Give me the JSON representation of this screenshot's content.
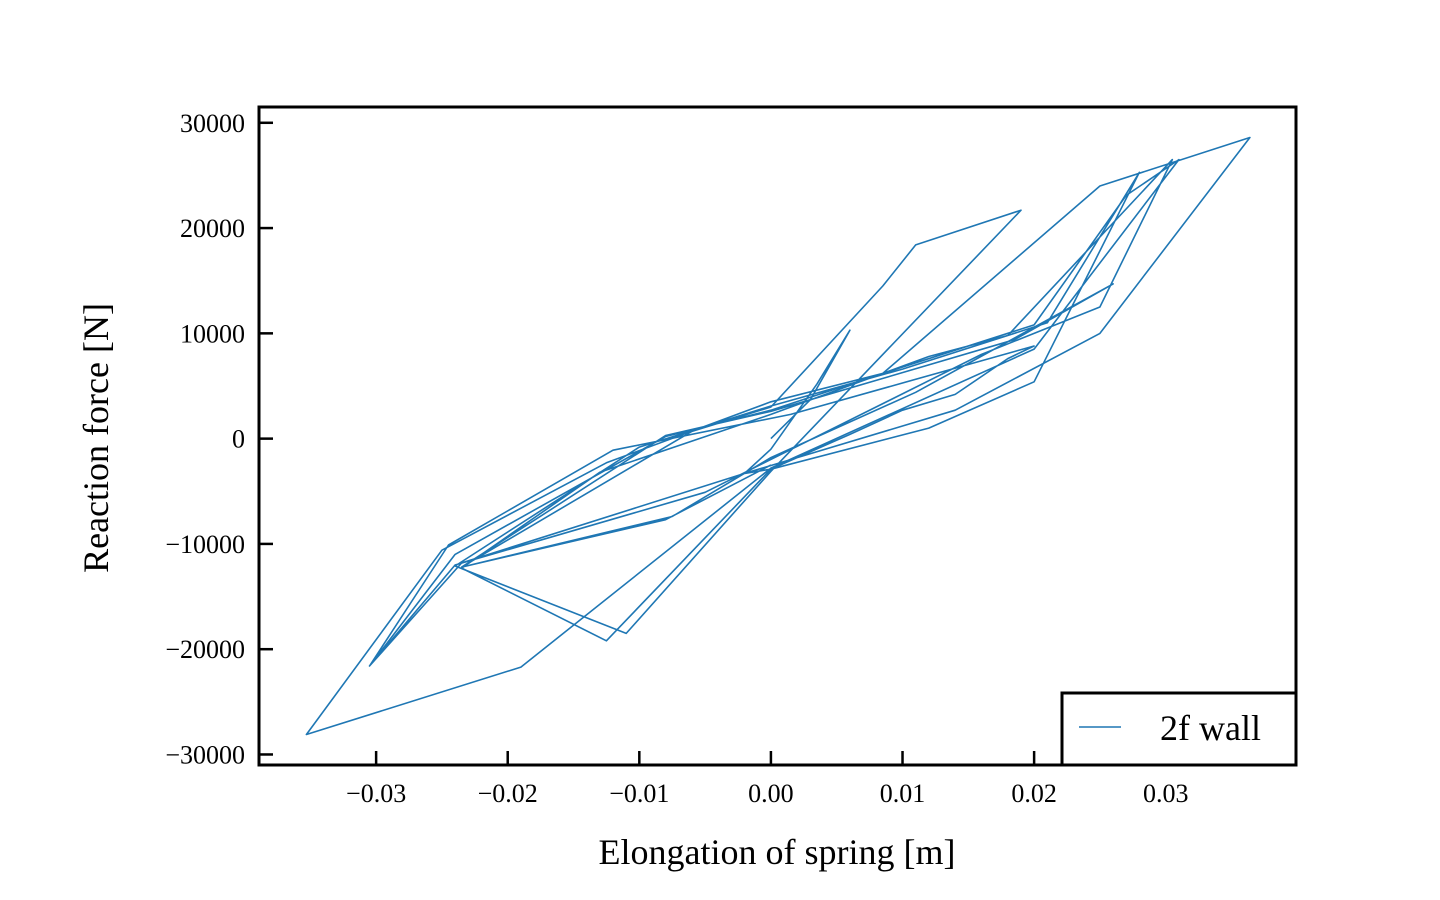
{
  "chart_data": {
    "type": "line",
    "title": "",
    "xlabel": "Elongation of spring [m]",
    "ylabel": "Reaction force [N]",
    "xlim": [
      -0.0389,
      0.0399
    ],
    "ylim": [
      -31000,
      31500
    ],
    "xticks": [
      -0.03,
      -0.02,
      -0.01,
      0.0,
      0.01,
      0.02,
      0.03
    ],
    "xtick_labels": [
      "−0.03",
      "−0.02",
      "−0.01",
      "0.00",
      "0.01",
      "0.02",
      "0.03"
    ],
    "yticks": [
      -30000,
      -20000,
      -10000,
      0,
      10000,
      20000,
      30000
    ],
    "ytick_labels": [
      "−30000",
      "−20000",
      "−10000",
      "0",
      "10000",
      "20000",
      "30000"
    ],
    "tick_direction": "in",
    "grid": false,
    "legend": {
      "position": "lower-right"
    },
    "series": [
      {
        "name": "2f wall",
        "color": "#1f77b4",
        "points": [
          [
            0.0,
            0
          ],
          [
            0.003,
            3700
          ],
          [
            0.006,
            10300
          ],
          [
            0.0035,
            5200
          ],
          [
            0.0,
            -1000
          ],
          [
            -0.002,
            -3300
          ],
          [
            0.0,
            -2900
          ],
          [
            0.006,
            400
          ],
          [
            0.01,
            2700
          ],
          [
            0.014,
            4200
          ],
          [
            0.018,
            7600
          ],
          [
            0.02,
            8800
          ],
          [
            0.0015,
            2300
          ],
          [
            -0.012,
            -1100
          ],
          [
            -0.0245,
            -10100
          ],
          [
            -0.0305,
            -21600
          ],
          [
            -0.0235,
            -11800
          ],
          [
            -0.002,
            -3300
          ],
          [
            0.014,
            2700
          ],
          [
            0.025,
            10000
          ],
          [
            0.0364,
            28600
          ],
          [
            0.025,
            24000
          ],
          [
            0.0085,
            6200
          ],
          [
            0.0,
            3500
          ],
          [
            -0.0125,
            -2300
          ],
          [
            -0.025,
            -10600
          ],
          [
            -0.0353,
            -28100
          ],
          [
            -0.019,
            -21700
          ],
          [
            0.0,
            -2800
          ],
          [
            0.02,
            8500
          ],
          [
            0.031,
            26500
          ],
          [
            0.027,
            23100
          ],
          [
            0.02,
            10800
          ],
          [
            0.008,
            6000
          ],
          [
            0.0,
            2700
          ],
          [
            -0.008,
            200
          ],
          [
            -0.024,
            -11000
          ],
          [
            -0.0305,
            -21600
          ],
          [
            -0.024,
            -12000
          ],
          [
            -0.005,
            -5100
          ],
          [
            0.016,
            8000
          ],
          [
            0.025,
            12500
          ],
          [
            0.0305,
            26500
          ],
          [
            0.018,
            9800
          ],
          [
            0.012,
            7800
          ],
          [
            0.0,
            2300
          ],
          [
            -0.013,
            -3200
          ],
          [
            -0.0235,
            -12300
          ],
          [
            -0.0125,
            -19200
          ],
          [
            0.0,
            -2900
          ],
          [
            0.012,
            1000
          ],
          [
            0.02,
            5400
          ],
          [
            0.028,
            25300
          ],
          [
            0.021,
            11000
          ],
          [
            0.01,
            6600
          ],
          [
            0.0,
            3100
          ],
          [
            -0.01,
            -800
          ],
          [
            -0.024,
            -12100
          ],
          [
            -0.011,
            -18500
          ],
          [
            0.0,
            -3100
          ],
          [
            0.019,
            21700
          ],
          [
            0.011,
            18400
          ],
          [
            0.0085,
            14500
          ],
          [
            0.0,
            3000
          ],
          [
            -0.006,
            700
          ],
          [
            -0.0235,
            -12200
          ],
          [
            -0.0075,
            -7400
          ],
          [
            0.0,
            -1800
          ],
          [
            0.011,
            4400
          ],
          [
            0.026,
            14700
          ],
          [
            0.0185,
            9400
          ],
          [
            0.0,
            2600
          ],
          [
            -0.008,
            300
          ],
          [
            -0.0235,
            -12200
          ],
          [
            -0.008,
            -7700
          ],
          [
            0.0,
            -2500
          ]
        ]
      }
    ]
  }
}
